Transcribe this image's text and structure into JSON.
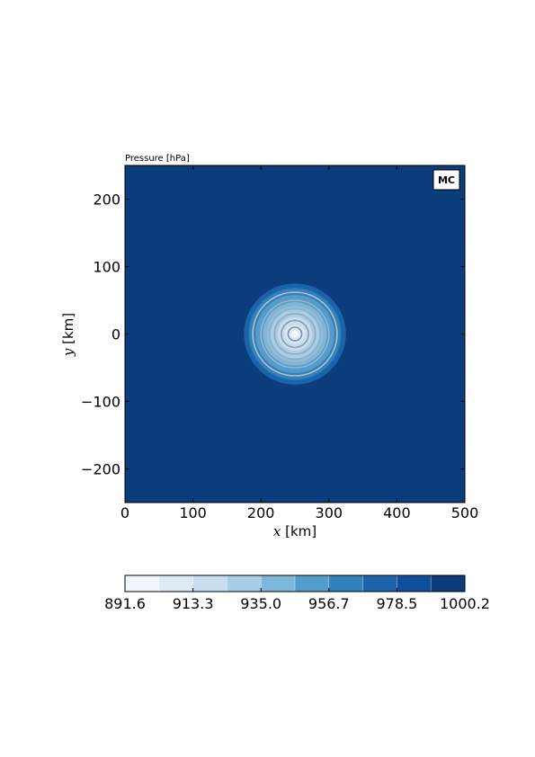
{
  "chart_data": {
    "type": "heatmap",
    "title": "Pressure [hPa]",
    "tag": "MC",
    "xlabel": {
      "var": "x",
      "unit": " [km]"
    },
    "ylabel": {
      "var": "y",
      "unit": " [km]"
    },
    "xlim": [
      0,
      500
    ],
    "ylim": [
      -250,
      250
    ],
    "xticks": [
      0,
      100,
      200,
      300,
      400,
      500
    ],
    "xtick_labels": [
      "0",
      "100",
      "200",
      "300",
      "400",
      "500"
    ],
    "yticks": [
      200,
      100,
      0,
      -100,
      -200
    ],
    "ytick_labels": [
      "200",
      "100",
      "0",
      "−100",
      "−200"
    ],
    "vortex_center": [
      250,
      0
    ],
    "levels": [
      {
        "max_radius_km": 75,
        "color": "#1c63aa"
      },
      {
        "max_radius_km": 68,
        "color": "#3181bd"
      },
      {
        "max_radius_km": 58,
        "color": "#529dcc"
      },
      {
        "max_radius_km": 47,
        "color": "#7db8da"
      },
      {
        "max_radius_km": 36,
        "color": "#a8cde4"
      },
      {
        "max_radius_km": 25,
        "color": "#c9ddf0"
      },
      {
        "max_radius_km": 14,
        "color": "#deebf7"
      },
      {
        "max_radius_km": 5,
        "color": "#f0f6fc"
      }
    ],
    "background_color": "#0b3c7b",
    "contour_radii_km": [
      10,
      20,
      30,
      40,
      50,
      62
    ],
    "contour_colors": [
      "#7a8ea8",
      "#8a9bb0",
      "#9aa8b8",
      "#b0b8c0",
      "#a8b2bc",
      "#b8bec4"
    ],
    "colorbar": {
      "colors": [
        "#f0f6fc",
        "#deebf7",
        "#c9ddf0",
        "#a8cde4",
        "#7db8da",
        "#529dcc",
        "#3181bd",
        "#1c63aa",
        "#0d4f9a",
        "#0b3c7b"
      ],
      "tick_labels": [
        "891.6",
        "913.3",
        "935.0",
        "956.7",
        "978.5",
        "1000.2"
      ]
    }
  }
}
